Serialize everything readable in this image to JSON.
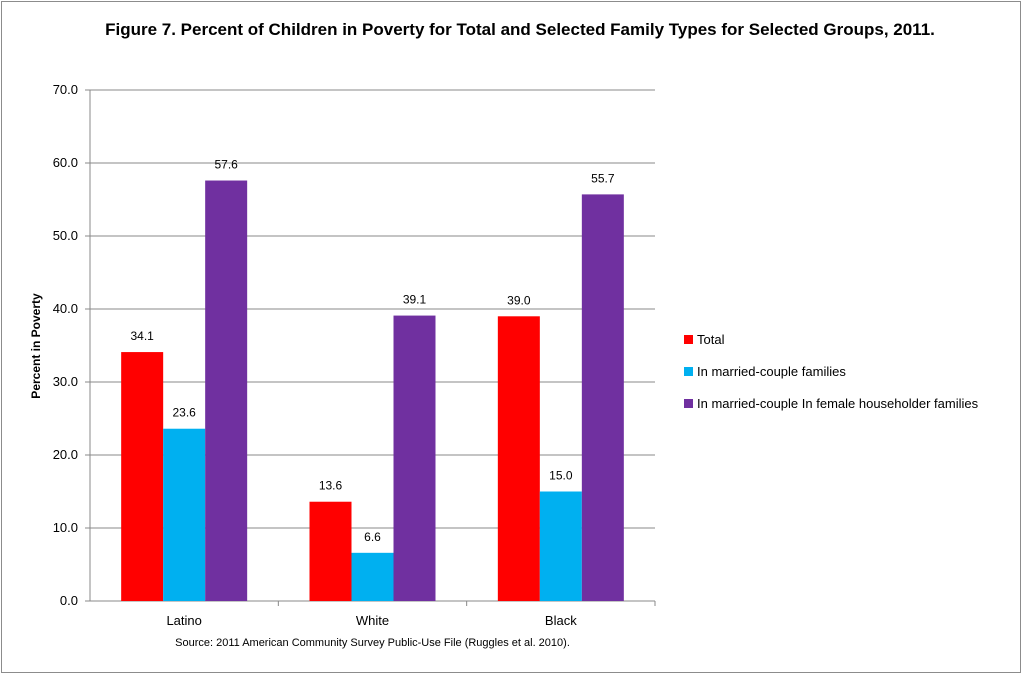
{
  "title": "Figure 7. Percent of Children in Poverty for Total and Selected Family Types for Selected Groups, 2011.",
  "source": "Source: 2011 American Community Survey Public-Use File (Ruggles et al. 2010).",
  "colors": {
    "total": "#ff0000",
    "married": "#00b0f0",
    "female": "#7030a0",
    "grid": "#888888"
  },
  "chart_data": {
    "type": "bar",
    "categories": [
      "Latino",
      "White",
      "Black"
    ],
    "series": [
      {
        "name": "Total",
        "color": "#ff0000",
        "values": [
          34.1,
          13.6,
          39.0
        ]
      },
      {
        "name": "In married-couple families",
        "color": "#00b0f0",
        "values": [
          23.6,
          6.6,
          15.0
        ]
      },
      {
        "name": "In married-couple In female householder families",
        "color": "#7030a0",
        "values": [
          57.6,
          39.1,
          55.7
        ]
      }
    ],
    "xlabel": "",
    "ylabel": "Percent in Poverty",
    "ylim": [
      0,
      70
    ],
    "yticks": [
      "0.0",
      "10.0",
      "20.0",
      "30.0",
      "40.0",
      "50.0",
      "60.0",
      "70.0"
    ],
    "grid": true,
    "legend": "right"
  }
}
